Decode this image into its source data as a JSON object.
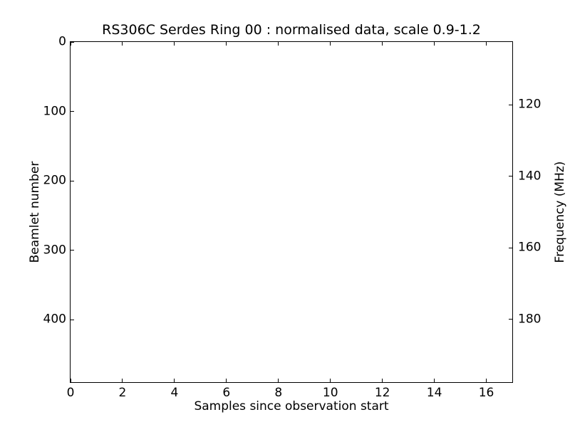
{
  "figure": {
    "background": "#ffffff"
  },
  "chart_data": {
    "type": "heatmap",
    "title": "RS306C Serdes Ring 00 : normalised data, scale 0.9-1.2",
    "xlabel": "Samples since observation start",
    "ylabel_left": "Beamlet number",
    "ylabel_right": "Frequency (MHz)",
    "xlim": [
      0,
      17
    ],
    "xticks": [
      0,
      2,
      4,
      6,
      8,
      10,
      12,
      14,
      16
    ],
    "ylim_left": [
      0,
      490
    ],
    "yticks_left": [
      0,
      100,
      200,
      300,
      400
    ],
    "ylim_right": [
      102.5,
      197.5
    ],
    "yticks_right": [
      120,
      140,
      160,
      180
    ],
    "y_axis_inverted": true,
    "grid": false,
    "legend": false,
    "scale_range": "0.9-1.2",
    "values": [],
    "colors": {
      "frame": "#000000",
      "text": "#000000",
      "background": "#ffffff"
    }
  }
}
